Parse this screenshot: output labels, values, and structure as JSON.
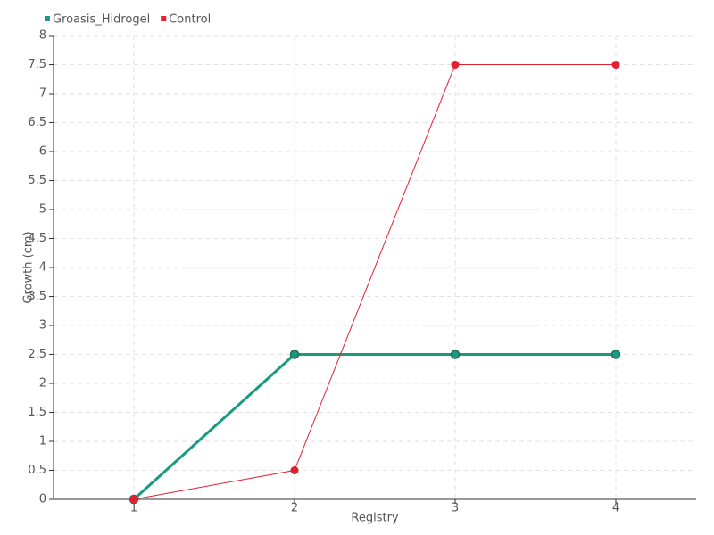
{
  "chart_data": {
    "type": "line",
    "x_label": "Registry",
    "y_label": "Growth (cm)",
    "categories": [
      "1",
      "2",
      "3",
      "4"
    ],
    "series": [
      {
        "name": "Groasis_Hidrogel",
        "color": "#1a9a80",
        "values": [
          0,
          2.5,
          2.5,
          2.5
        ]
      },
      {
        "name": "Control",
        "color": "#e3202f",
        "values": [
          0,
          0.5,
          7.5,
          7.5
        ]
      }
    ],
    "ylim": [
      0,
      8
    ],
    "yticks": [
      0,
      0.5,
      1,
      1.5,
      2,
      2.5,
      3,
      3.5,
      4,
      4.5,
      5,
      5.5,
      6,
      6.5,
      7,
      7.5,
      8
    ],
    "grid": true,
    "legend": "top-left"
  }
}
